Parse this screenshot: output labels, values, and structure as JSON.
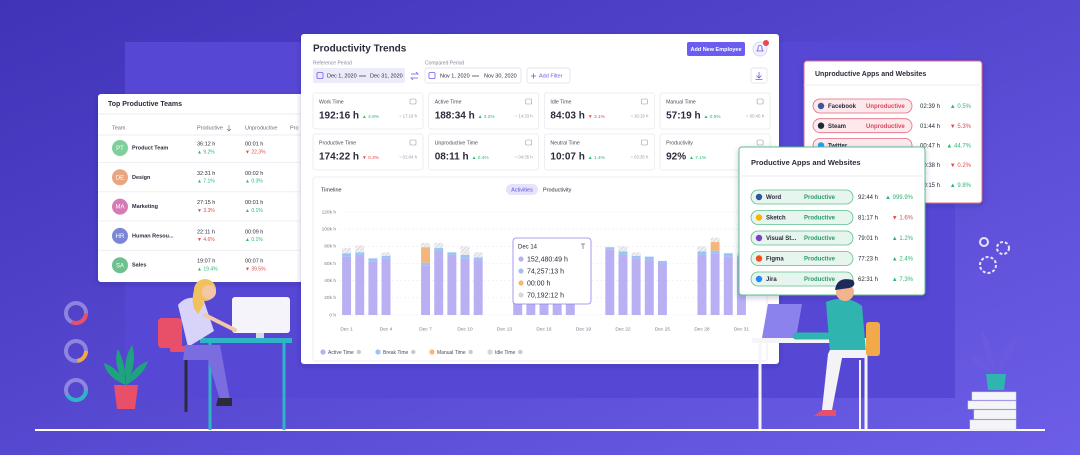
{
  "trends": {
    "title": "Productivity Trends",
    "add_button": "Add New Employee",
    "reference_label": "Reference Period",
    "reference_start": "Dec 1, 2020",
    "reference_end": "Dec 31, 2020",
    "compared_label": "Compared Period",
    "compared_start": "Nov 1, 2020",
    "compared_end": "Nov 30, 2020",
    "filter_button": "Add Filter",
    "cards": [
      {
        "label": "Work Time",
        "value": "192:16 h",
        "change": "▲ 4.8%",
        "compare": "~ 17:19 h"
      },
      {
        "label": "Active Time",
        "value": "188:34 h",
        "change": "▲ 3.2%",
        "compare": "~ 14:33 h"
      },
      {
        "label": "Idle Time",
        "value": "84:03 h",
        "change": "▼ 3.1%",
        "compare": "~ 16:19 h"
      },
      {
        "label": "Manual Time",
        "value": "57:19 h",
        "change": "▲ 0.5%",
        "compare": "~ 00:45 h"
      },
      {
        "label": "Productive Time",
        "value": "174:22 h",
        "change": "▼ 0.3%",
        "compare": "~ 01:04 h"
      },
      {
        "label": "Unproductive Time",
        "value": "08:11 h",
        "change": "▲ 0.4%",
        "compare": "~ 04:35 h"
      },
      {
        "label": "Neutral Time",
        "value": "10:07 h",
        "change": "▲ 1.4%",
        "compare": "~ 03:35 h"
      },
      {
        "label": "Productivity",
        "value": "92%",
        "change": "▲ 7.1%"
      }
    ],
    "tabs": {
      "timeline": "Timeline",
      "activities": "Activities",
      "productivity": "Productivity"
    },
    "chart": {
      "type": "bar",
      "stacked": true,
      "categories": [
        "Dec 1",
        null,
        null,
        "Dec 4",
        null,
        null,
        "Dec 7",
        null,
        null,
        "Dec 10",
        null,
        null,
        "Dec 13",
        null,
        null,
        "Dec 16",
        null,
        null,
        "Dec 19",
        null,
        null,
        "Dec 22",
        null,
        null,
        "Dec 25",
        null,
        null,
        "Dec 28",
        null,
        null,
        "Dec 31"
      ],
      "series": [
        {
          "name": "Active Time",
          "color": "#b8b0f3",
          "values": [
            68000,
            70000,
            62000,
            66000,
            0,
            0,
            58000,
            74000,
            70000,
            66000,
            64000,
            0,
            0,
            72000,
            70000,
            68000,
            66000,
            60000,
            0,
            0,
            76000,
            70000,
            66000,
            64000,
            60000,
            0,
            0,
            70000,
            72000,
            68000,
            66000
          ]
        },
        {
          "name": "Break Time",
          "color": "#9cc4f2",
          "values": [
            4000,
            3000,
            4000,
            3000,
            0,
            0,
            3000,
            4000,
            3000,
            4000,
            3000,
            0,
            0,
            4000,
            3000,
            4000,
            3000,
            4000,
            0,
            0,
            3000,
            4000,
            3000,
            4000,
            3000,
            0,
            0,
            4000,
            3000,
            4000,
            3000
          ]
        },
        {
          "name": "Manual Time",
          "color": "#f5b67a",
          "values": [
            0,
            0,
            0,
            0,
            0,
            0,
            18000,
            0,
            0,
            0,
            0,
            0,
            0,
            0,
            0,
            0,
            0,
            0,
            0,
            0,
            0,
            0,
            0,
            0,
            0,
            0,
            0,
            0,
            10000,
            0,
            0
          ]
        },
        {
          "name": "Idle Time",
          "color": "#d6d6de",
          "values": [
            6000,
            8000,
            0,
            4000,
            0,
            0,
            5000,
            6000,
            0,
            10000,
            6000,
            0,
            0,
            8000,
            0,
            6000,
            0,
            5000,
            0,
            0,
            0,
            6000,
            4000,
            0,
            0,
            0,
            0,
            6000,
            5000,
            0,
            4000
          ]
        }
      ],
      "ylim": [
        0,
        120000
      ],
      "yticks": [
        {
          "value": 0,
          "label": "0 h"
        },
        {
          "value": 20000,
          "label": "20k h"
        },
        {
          "value": 40000,
          "label": "40k h"
        },
        {
          "value": 60000,
          "label": "60k h"
        },
        {
          "value": 80000,
          "label": "80k h"
        },
        {
          "value": 100000,
          "label": "100k h"
        },
        {
          "value": 120000,
          "label": "120k h"
        }
      ],
      "grid": true
    },
    "tooltip": {
      "date": "Dec 14",
      "rows": [
        "152,480:49 h",
        "74,257:13 h",
        "00:00 h",
        "70,192:12 h"
      ]
    }
  },
  "top_teams": {
    "title": "Top Productive Teams",
    "headers": [
      "Team",
      "Productive",
      "Unproductive",
      "Pro"
    ],
    "rows": [
      {
        "initials": "PT",
        "color": "#7dcf9c",
        "name": "Product Team",
        "productive": "36:12 h",
        "productive_change": "▲ 9.2%",
        "unproductive": "00:01 h",
        "unproductive_change": "▼ 22.3%"
      },
      {
        "initials": "DE",
        "color": "#e8a57f",
        "name": "Design",
        "productive": "32:31 h",
        "productive_change": "▲ 7.1%",
        "unproductive": "00:02 h",
        "unproductive_change": "▲ 0.3%"
      },
      {
        "initials": "MA",
        "color": "#d77bb6",
        "name": "Marketing",
        "productive": "27:15 h",
        "productive_change": "▼ 3.3%",
        "unproductive": "00:01 h",
        "unproductive_change": "▲ 0.1%"
      },
      {
        "initials": "HR",
        "color": "#7b86d6",
        "name": "Human Resou...",
        "productive": "22:11 h",
        "productive_change": "▼ 4.6%",
        "unproductive": "00:09 h",
        "unproductive_change": "▲ 0.1%"
      },
      {
        "initials": "SA",
        "color": "#6fc08f",
        "name": "Sales",
        "productive": "19:07 h",
        "productive_change": "▲ 19.4%",
        "unproductive": "00:07 h",
        "unproductive_change": "▼ 39.5%"
      }
    ]
  },
  "unproductive_apps": {
    "title": "Unproductive Apps and Websites",
    "rows": [
      {
        "name": "Facebook",
        "color": "#3b5998",
        "status": "Unproductive",
        "time": "02:39 h",
        "change": "▲ 0.5%"
      },
      {
        "name": "Steam",
        "color": "#1b2838",
        "status": "Unproductive",
        "time": "01:44 h",
        "change": "▼ 5.3%"
      },
      {
        "name": "Twitter",
        "color": "#1da1f2",
        "time": "00:47 h",
        "change": "▲ 44.7%"
      },
      {
        "time": "00:38 h",
        "change": "▼ 0.2%"
      },
      {
        "time": "00:15 h",
        "change": "▲ 9.8%"
      }
    ]
  },
  "productive_apps": {
    "title": "Productive Apps and Websites",
    "rows": [
      {
        "name": "Word",
        "color": "#2b579a",
        "status": "Productive",
        "time": "92:44 h",
        "change": "▲ 999.9%"
      },
      {
        "name": "Sketch",
        "color": "#f7b500",
        "status": "Productive",
        "time": "81:17 h",
        "change": "▼ 1.6%"
      },
      {
        "name": "Visual St...",
        "color": "#7b3fc4",
        "status": "Productive",
        "time": "79:01 h",
        "change": "▲ 1.2%"
      },
      {
        "name": "Figma",
        "color": "#f24e1e",
        "status": "Productive",
        "time": "77:23 h",
        "change": "▲ 2.4%"
      },
      {
        "name": "Jira",
        "color": "#2684ff",
        "status": "Productive",
        "time": "62:31 h",
        "change": "▲ 7.3%"
      }
    ]
  }
}
